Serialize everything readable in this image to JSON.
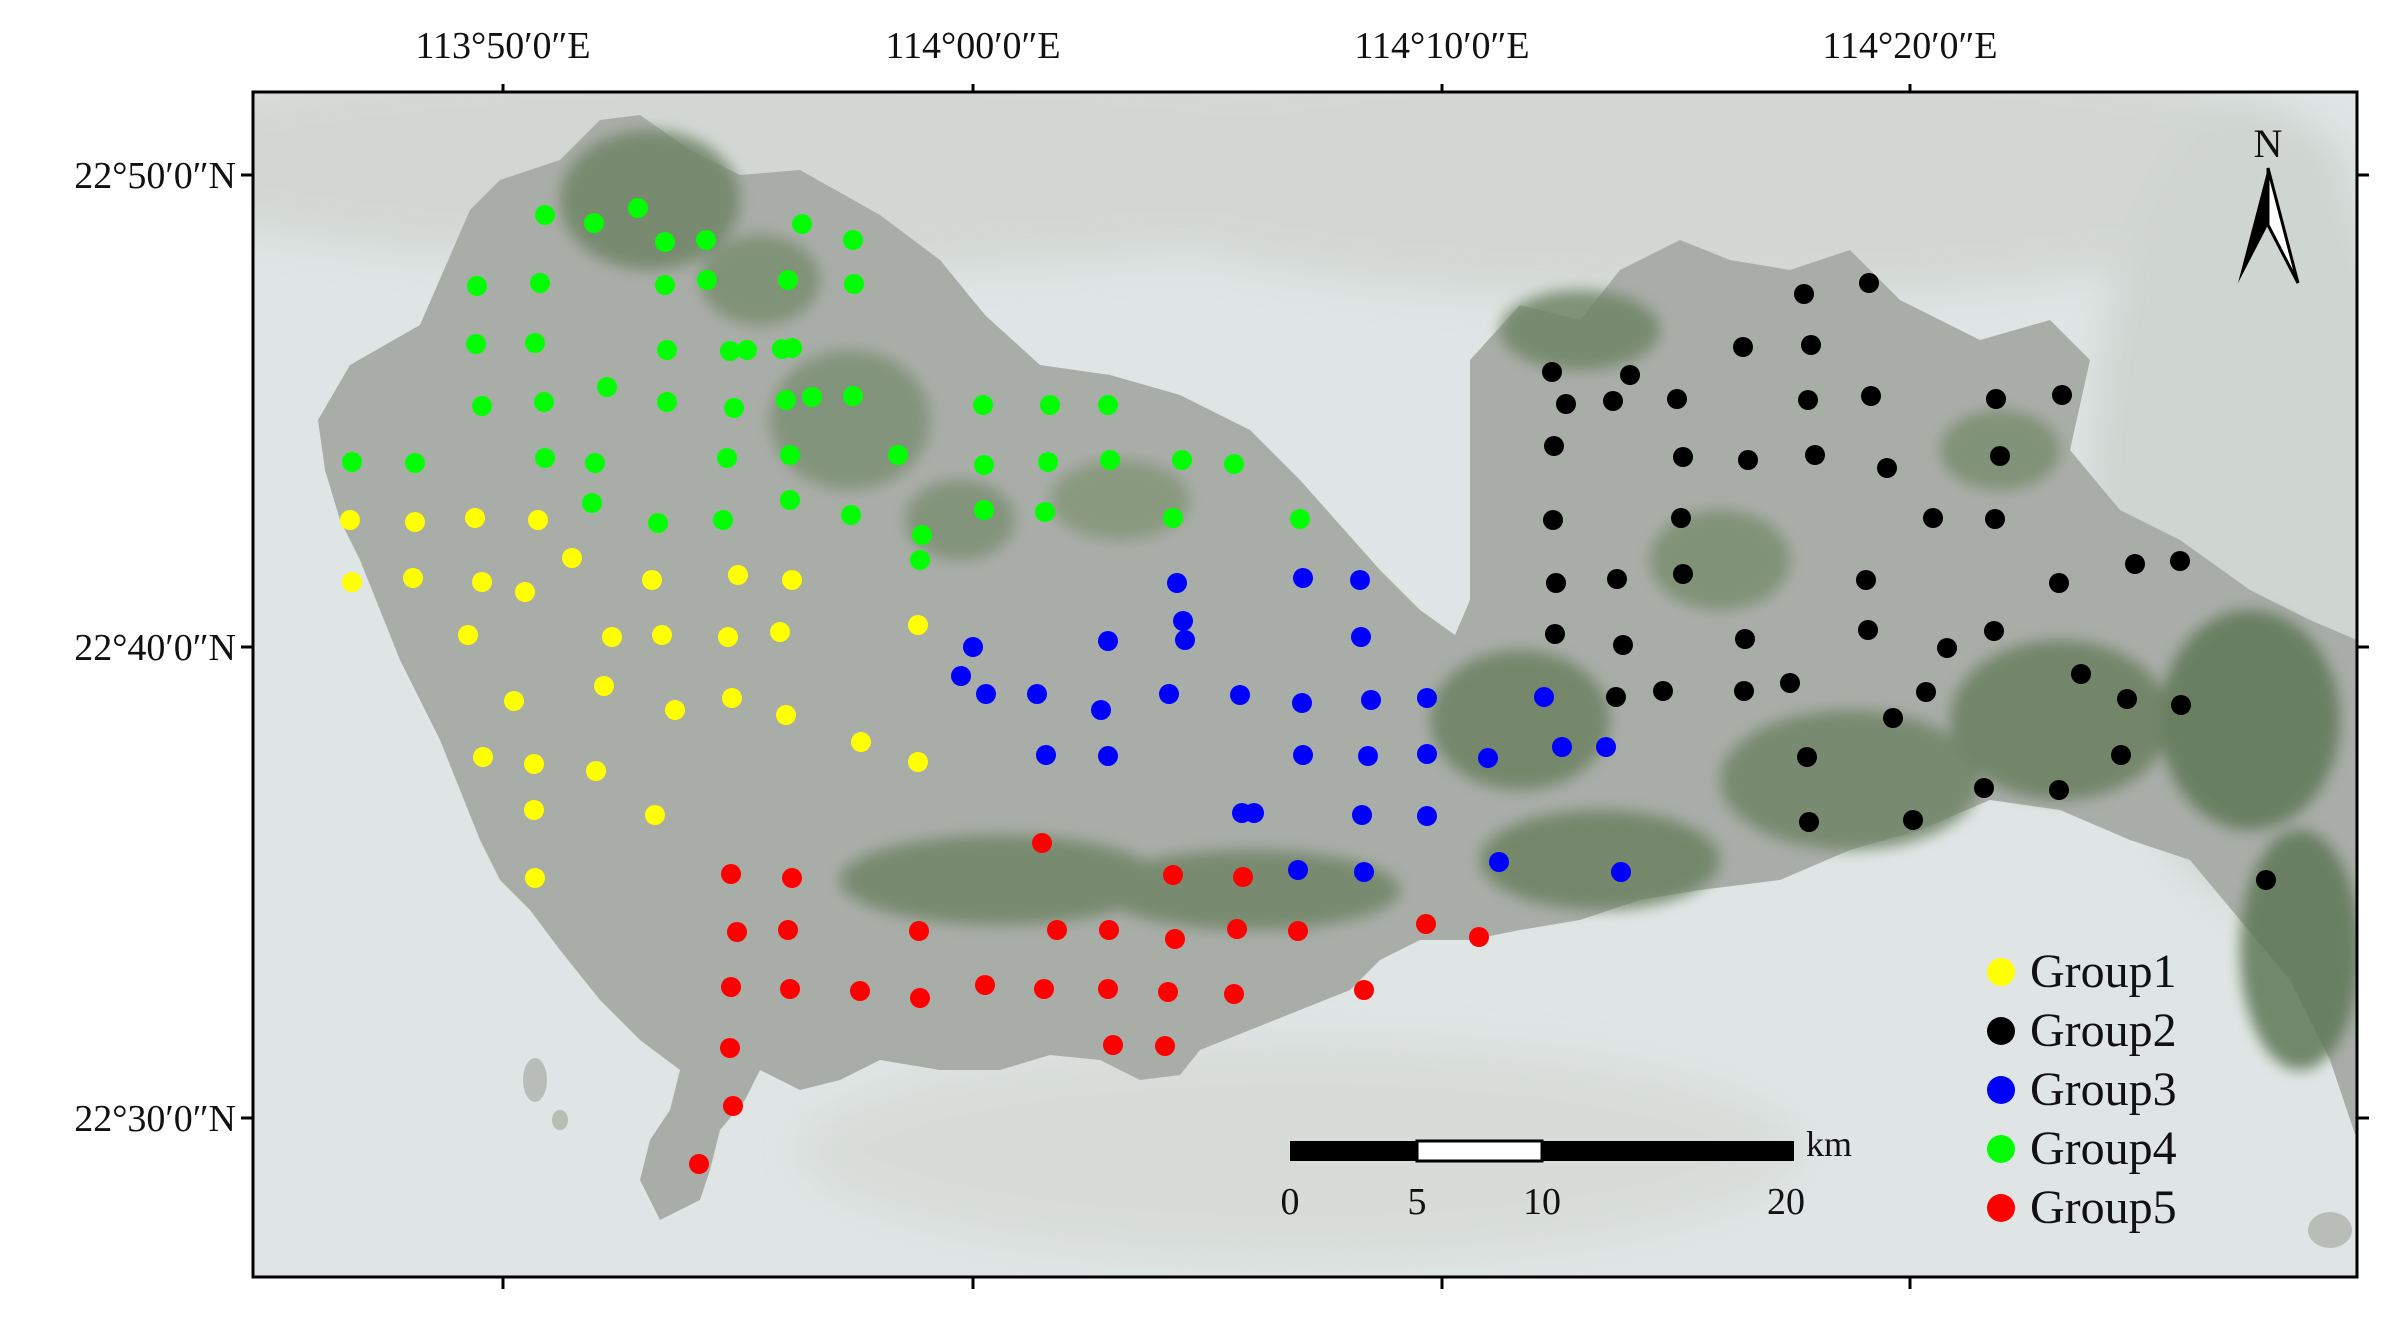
{
  "axes": {
    "top_labels": [
      "113°50′0″E",
      "114°00′0″E",
      "114°10′0″E",
      "114°20′0″E"
    ],
    "left_labels": [
      "22°50′0″N",
      "22°40′0″N",
      "22°30′0″N"
    ]
  },
  "north_arrow": {
    "label": "N"
  },
  "scale_bar": {
    "unit": "km",
    "ticks": [
      "0",
      "5",
      "10",
      "20"
    ]
  },
  "legend": {
    "items": [
      {
        "label": "Group1",
        "color": "#ffff00"
      },
      {
        "label": "Group2",
        "color": "#000000"
      },
      {
        "label": "Group3",
        "color": "#0000ff"
      },
      {
        "label": "Group4",
        "color": "#00ff00"
      },
      {
        "label": "Group5",
        "color": "#ff0000"
      }
    ]
  },
  "colors": {
    "frame": "#000000",
    "sea": "#dfe5e4",
    "land": "#a9ada8",
    "vegetation": "#6f8566",
    "urban": "#9aa0a8"
  }
}
